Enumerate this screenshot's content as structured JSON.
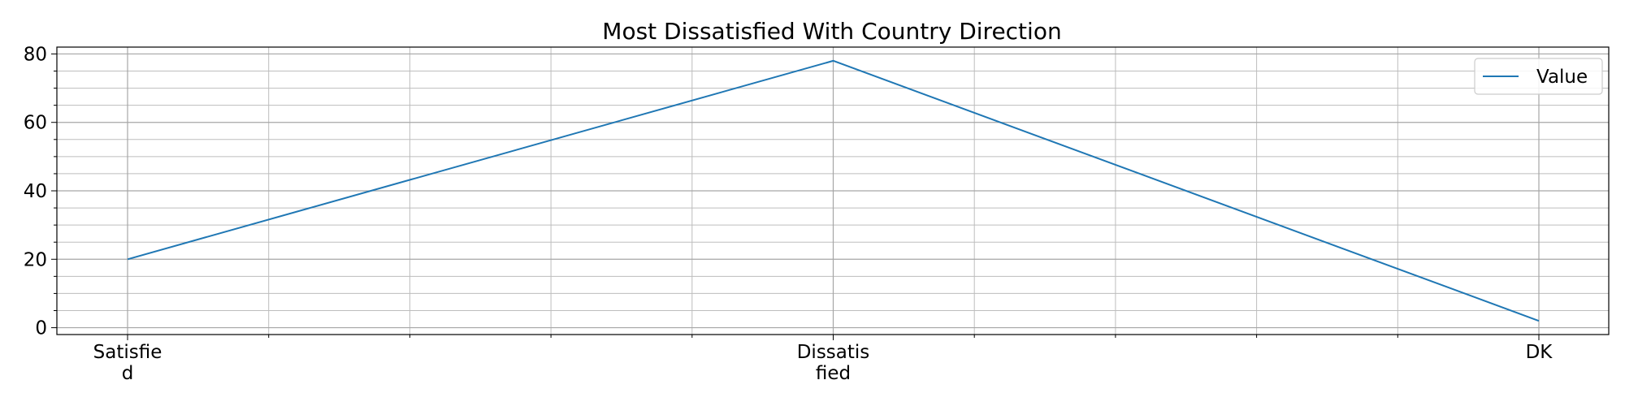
{
  "chart_data": {
    "type": "line",
    "title": "Most Dissatisfied With Country Direction",
    "xlabel": "",
    "ylabel": "",
    "categories": [
      [
        "Satisfie",
        "d"
      ],
      [
        "Dissatis",
        "fied"
      ],
      [
        "DK"
      ]
    ],
    "series": [
      {
        "name": "Value",
        "values": [
          20,
          78,
          2
        ],
        "color": "#1f77b4"
      }
    ],
    "ylim": [
      -2,
      82
    ],
    "y_ticks": [
      "0",
      "20",
      "40",
      "60",
      "80"
    ],
    "grid": true,
    "legend": "top-right"
  }
}
